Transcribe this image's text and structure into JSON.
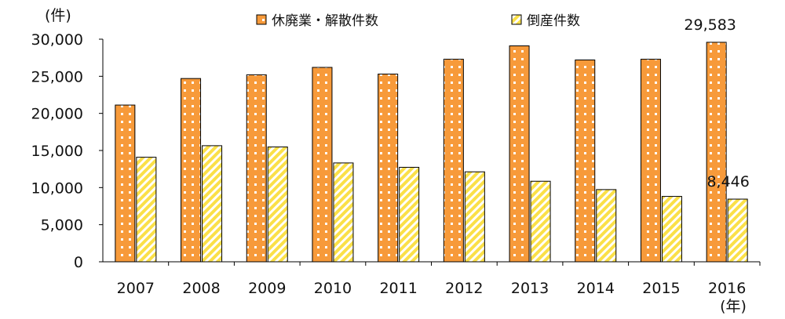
{
  "chart_data": {
    "type": "bar",
    "y_unit": "(件)",
    "x_unit": "(年)",
    "categories": [
      "2007",
      "2008",
      "2009",
      "2010",
      "2011",
      "2012",
      "2013",
      "2014",
      "2015",
      "2016"
    ],
    "series": [
      {
        "name": "休廃業・解散件数",
        "values": [
          21122,
          24700,
          25200,
          26200,
          25300,
          27300,
          29100,
          27200,
          27300,
          29583
        ],
        "color": "#f79a3a"
      },
      {
        "name": "倒産件数",
        "values": [
          14091,
          15646,
          15480,
          13321,
          12734,
          12124,
          10855,
          9731,
          8812,
          8446
        ],
        "color": "#fbe048"
      }
    ],
    "ylim": [
      0,
      30000
    ],
    "yticks": [
      "0",
      "5,000",
      "10,000",
      "15,000",
      "20,000",
      "25,000",
      "30,000"
    ],
    "yticks_values": [
      0,
      5000,
      10000,
      15000,
      20000,
      25000,
      30000
    ],
    "grid": false,
    "legend_position": "top",
    "data_labels": [
      {
        "series": 0,
        "index": 9,
        "text": "29,583"
      },
      {
        "series": 1,
        "index": 9,
        "text": "8,446"
      }
    ]
  }
}
